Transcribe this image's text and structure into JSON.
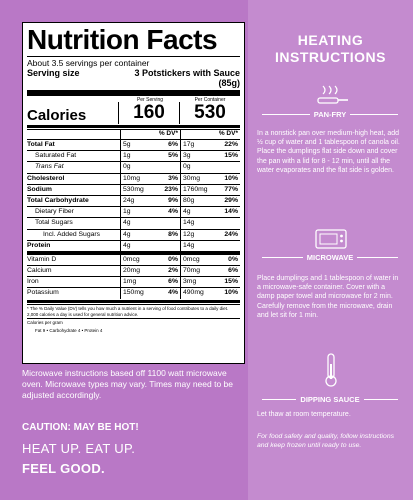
{
  "nutrition": {
    "title": "Nutrition Facts",
    "servings_per_container": "About 3.5 servings per container",
    "serving_size_label": "Serving size",
    "serving_size_value": "3 Potstickers with Sauce (85g)",
    "per_serving": "Per Serving",
    "per_container": "Per Container",
    "calories_label": "Calories",
    "calories_serving": "160",
    "calories_container": "530",
    "dv_header": "% DV*",
    "rows": [
      {
        "label": "Total Fat",
        "bold": true,
        "indent": 0,
        "a1": "5g",
        "p1": "6%",
        "a2": "17g",
        "p2": "22%"
      },
      {
        "label": "Saturated Fat",
        "bold": false,
        "indent": 1,
        "a1": "1g",
        "p1": "5%",
        "a2": "3g",
        "p2": "15%"
      },
      {
        "label": "Trans Fat",
        "bold": false,
        "indent": 1,
        "italic": true,
        "a1": "0g",
        "p1": "",
        "a2": "0g",
        "p2": ""
      },
      {
        "label": "Cholesterol",
        "bold": true,
        "indent": 0,
        "a1": "10mg",
        "p1": "3%",
        "a2": "30mg",
        "p2": "10%"
      },
      {
        "label": "Sodium",
        "bold": true,
        "indent": 0,
        "a1": "530mg",
        "p1": "23%",
        "a2": "1760mg",
        "p2": "77%"
      },
      {
        "label": "Total Carbohydrate",
        "bold": true,
        "indent": 0,
        "a1": "24g",
        "p1": "9%",
        "a2": "80g",
        "p2": "29%"
      },
      {
        "label": "Dietary Fiber",
        "bold": false,
        "indent": 1,
        "a1": "1g",
        "p1": "4%",
        "a2": "4g",
        "p2": "14%"
      },
      {
        "label": "Total Sugars",
        "bold": false,
        "indent": 1,
        "a1": "4g",
        "p1": "",
        "a2": "14g",
        "p2": ""
      },
      {
        "label": "Incl. Added Sugars",
        "bold": false,
        "indent": 2,
        "a1": "4g",
        "p1": "8%",
        "a2": "12g",
        "p2": "24%"
      },
      {
        "label": "Protein",
        "bold": true,
        "indent": 0,
        "a1": "4g",
        "p1": "",
        "a2": "14g",
        "p2": ""
      },
      {
        "label": "Vitamin D",
        "bold": false,
        "indent": 0,
        "thick": true,
        "a1": "0mcg",
        "p1": "0%",
        "a2": "0mcg",
        "p2": "0%"
      },
      {
        "label": "Calcium",
        "bold": false,
        "indent": 0,
        "a1": "20mg",
        "p1": "2%",
        "a2": "70mg",
        "p2": "6%"
      },
      {
        "label": "Iron",
        "bold": false,
        "indent": 0,
        "a1": "1mg",
        "p1": "6%",
        "a2": "3mg",
        "p2": "15%"
      },
      {
        "label": "Potassium",
        "bold": false,
        "indent": 0,
        "a1": "150mg",
        "p1": "4%",
        "a2": "490mg",
        "p2": "10%"
      }
    ],
    "footnote": "* The % Daily Value (DV) tells you how much a nutrient in a serving of food contributes to a daily diet. 2,000 calories a day is used for general nutrition advice.",
    "calories_per_gram": "Calories per gram",
    "cpg_values": "Fat 9  •  Carbohydrate 4  •  Protein 4"
  },
  "left": {
    "microwave_note": "Microwave instructions based off 1100 watt microwave oven. Microwave types may vary. Times may need to be adjusted accordingly.",
    "caution": "CAUTION: MAY BE HOT!",
    "tagline1": "HEAT UP. EAT UP.",
    "tagline2": "FEEL GOOD."
  },
  "heating": {
    "title_line1": "HEATING",
    "title_line2": "INSTRUCTIONS",
    "panfry_title": "PAN-FRY",
    "panfry_text": "In a nonstick pan over medium-high heat, add ½ cup of water and 1 tablespoon of canola oil. Place the dumplings flat side down and cover the pan with a lid for 8 - 12 min, until all the water evaporates and the flat side is golden.",
    "microwave_title": "MICROWAVE",
    "microwave_text": "Place dumplings and 1 tablespoon of water in a microwave-safe container. Cover with a damp paper towel and microwave for 2 min. Carefully remove from the microwave, drain and let sit for 1 min.",
    "sauce_title": "DIPPING SAUCE",
    "sauce_text": "Let thaw at room temperature.",
    "food_safety": "For food safety and quality, follow instructions and keep frozen until ready to use."
  },
  "icons": [
    "pan-icon",
    "microwave-icon",
    "thermometer-icon"
  ],
  "colors": {
    "background": "#b978c6",
    "panel": "#c48bcf",
    "label": "#ffffff",
    "text": "#ffffff"
  }
}
